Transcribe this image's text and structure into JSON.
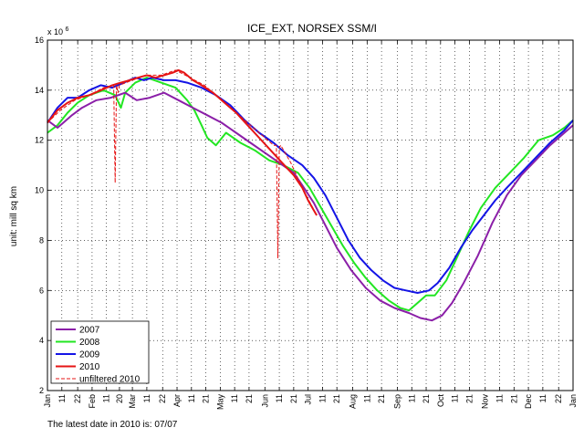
{
  "chart_data": {
    "type": "line",
    "title": "ICE_EXT, NORSEX SSM/I",
    "ylabel": "unit: mill sq km",
    "y_multiplier_label": "x 10",
    "y_multiplier_exponent": "6",
    "xlabel": "",
    "ylim": [
      2,
      16
    ],
    "yticks": [
      2,
      4,
      6,
      8,
      10,
      12,
      14,
      16
    ],
    "xlim": [
      1,
      366
    ],
    "x_unit": "day of year",
    "xticks": [
      {
        "day": 1,
        "label": "Jan"
      },
      {
        "day": 11,
        "label": "11"
      },
      {
        "day": 22,
        "label": "22"
      },
      {
        "day": 32,
        "label": "Feb"
      },
      {
        "day": 42,
        "label": "11"
      },
      {
        "day": 51,
        "label": "20"
      },
      {
        "day": 60,
        "label": "Mar"
      },
      {
        "day": 70,
        "label": "11"
      },
      {
        "day": 81,
        "label": "22"
      },
      {
        "day": 91,
        "label": "Apr"
      },
      {
        "day": 101,
        "label": "11"
      },
      {
        "day": 111,
        "label": "21"
      },
      {
        "day": 121,
        "label": "May"
      },
      {
        "day": 131,
        "label": "11"
      },
      {
        "day": 141,
        "label": "21"
      },
      {
        "day": 152,
        "label": "Jun"
      },
      {
        "day": 162,
        "label": "11"
      },
      {
        "day": 172,
        "label": "21"
      },
      {
        "day": 182,
        "label": "Jul"
      },
      {
        "day": 192,
        "label": "11"
      },
      {
        "day": 202,
        "label": "21"
      },
      {
        "day": 213,
        "label": "Aug"
      },
      {
        "day": 223,
        "label": "11"
      },
      {
        "day": 233,
        "label": "21"
      },
      {
        "day": 244,
        "label": "Sep"
      },
      {
        "day": 254,
        "label": "11"
      },
      {
        "day": 264,
        "label": "21"
      },
      {
        "day": 274,
        "label": "Oct"
      },
      {
        "day": 284,
        "label": "11"
      },
      {
        "day": 294,
        "label": "21"
      },
      {
        "day": 305,
        "label": "Nov"
      },
      {
        "day": 315,
        "label": "11"
      },
      {
        "day": 325,
        "label": "21"
      },
      {
        "day": 335,
        "label": "Dec"
      },
      {
        "day": 345,
        "label": "11"
      },
      {
        "day": 356,
        "label": "22"
      },
      {
        "day": 366,
        "label": "Jan"
      }
    ],
    "grid": true,
    "legend_position": "bottom-left",
    "series": [
      {
        "name": "2007",
        "color": "#8b1fa8",
        "style": "solid",
        "x": [
          1,
          8,
          12,
          18,
          25,
          35,
          45,
          55,
          63,
          72,
          82,
          92,
          102,
          112,
          122,
          132,
          142,
          152,
          162,
          172,
          178,
          186,
          194,
          202,
          212,
          222,
          232,
          242,
          252,
          260,
          268,
          275,
          282,
          290,
          300,
          310,
          320,
          330,
          340,
          350,
          358,
          366
        ],
        "y": [
          12.8,
          12.5,
          12.7,
          13.0,
          13.3,
          13.6,
          13.7,
          13.9,
          13.6,
          13.7,
          13.9,
          13.6,
          13.3,
          13.0,
          12.7,
          12.3,
          11.9,
          11.5,
          11.1,
          10.7,
          10.2,
          9.5,
          8.6,
          7.7,
          6.8,
          6.1,
          5.6,
          5.3,
          5.1,
          4.9,
          4.8,
          5.0,
          5.5,
          6.3,
          7.4,
          8.7,
          9.8,
          10.6,
          11.2,
          11.8,
          12.2,
          12.6
        ]
      },
      {
        "name": "2008",
        "color": "#22e622",
        "style": "solid",
        "x": [
          1,
          8,
          15,
          22,
          30,
          40,
          48,
          52,
          55,
          62,
          70,
          80,
          90,
          98,
          103,
          108,
          112,
          118,
          125,
          135,
          145,
          155,
          165,
          175,
          183,
          190,
          198,
          206,
          214,
          222,
          230,
          238,
          246,
          252,
          258,
          264,
          270,
          278,
          286,
          294,
          302,
          312,
          322,
          332,
          342,
          352,
          360,
          366
        ],
        "y": [
          12.3,
          12.6,
          13.1,
          13.5,
          13.8,
          14.0,
          13.8,
          13.3,
          13.9,
          14.3,
          14.5,
          14.3,
          14.1,
          13.6,
          13.2,
          12.6,
          12.1,
          11.8,
          12.3,
          11.9,
          11.6,
          11.2,
          11.0,
          10.7,
          10.1,
          9.4,
          8.6,
          7.8,
          7.1,
          6.5,
          6.0,
          5.6,
          5.3,
          5.2,
          5.5,
          5.8,
          5.8,
          6.4,
          7.4,
          8.4,
          9.3,
          10.1,
          10.7,
          11.3,
          12.0,
          12.2,
          12.5,
          12.8
        ]
      },
      {
        "name": "2009",
        "color": "#1414e6",
        "style": "solid",
        "x": [
          1,
          8,
          15,
          22,
          30,
          38,
          46,
          54,
          62,
          68,
          74,
          82,
          90,
          98,
          108,
          118,
          128,
          138,
          148,
          158,
          168,
          178,
          186,
          194,
          202,
          210,
          218,
          226,
          234,
          242,
          250,
          258,
          266,
          272,
          280,
          288,
          296,
          304,
          312,
          320,
          330,
          340,
          350,
          360,
          366
        ],
        "y": [
          12.7,
          13.3,
          13.7,
          13.7,
          14.0,
          14.2,
          14.1,
          14.3,
          14.5,
          14.4,
          14.5,
          14.4,
          14.4,
          14.3,
          14.1,
          13.8,
          13.4,
          12.8,
          12.3,
          11.9,
          11.4,
          11.0,
          10.5,
          9.8,
          8.9,
          8.0,
          7.3,
          6.8,
          6.4,
          6.1,
          6.0,
          5.9,
          6.0,
          6.3,
          6.9,
          7.7,
          8.4,
          9.0,
          9.6,
          10.1,
          10.7,
          11.3,
          11.9,
          12.4,
          12.8
        ]
      },
      {
        "name": "2010",
        "color": "#e61414",
        "style": "solid",
        "x": [
          1,
          8,
          15,
          22,
          30,
          38,
          46,
          52,
          58,
          64,
          70,
          76,
          82,
          88,
          92,
          96,
          102,
          108,
          116,
          124,
          132,
          140,
          148,
          156,
          164,
          172,
          178,
          182,
          186,
          188
        ],
        "y": [
          12.7,
          13.2,
          13.5,
          13.7,
          13.8,
          14.0,
          14.2,
          14.3,
          14.4,
          14.5,
          14.6,
          14.5,
          14.6,
          14.7,
          14.8,
          14.7,
          14.4,
          14.2,
          13.9,
          13.5,
          13.1,
          12.6,
          12.1,
          11.6,
          11.1,
          10.6,
          10.1,
          9.6,
          9.2,
          9.0
        ]
      },
      {
        "name": "unfiltered 2010",
        "color": "#e61414",
        "style": "dashed",
        "x": [
          1,
          10,
          20,
          30,
          40,
          47,
          48,
          49,
          50,
          51,
          60,
          70,
          80,
          90,
          100,
          110,
          120,
          130,
          140,
          150,
          158,
          160,
          161,
          162,
          163,
          164,
          170,
          178,
          188
        ],
        "y": [
          12.7,
          13.2,
          13.6,
          13.8,
          14.1,
          14.2,
          10.3,
          14.2,
          13.9,
          14.2,
          14.4,
          14.6,
          14.6,
          14.8,
          14.5,
          14.2,
          13.7,
          13.2,
          12.7,
          12.2,
          11.8,
          11.8,
          7.3,
          11.7,
          11.8,
          11.7,
          11.1,
          10.1,
          9.0
        ]
      }
    ]
  },
  "footnote": {
    "label": "The latest date in 2010 is:",
    "date": "07/07"
  }
}
